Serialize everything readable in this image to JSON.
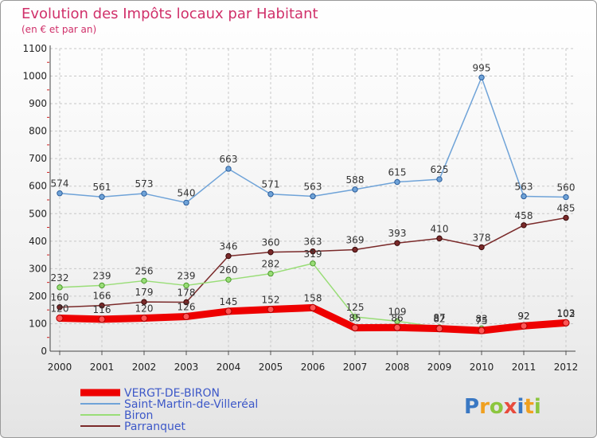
{
  "chart_data": {
    "type": "line",
    "title": "Evolution des Impôts locaux par Habitant",
    "subtitle": "(en € et par an)",
    "categories": [
      "2000",
      "2001",
      "2002",
      "2003",
      "2004",
      "2005",
      "2006",
      "2007",
      "2008",
      "2009",
      "2010",
      "2011",
      "2012"
    ],
    "ylim": [
      0,
      1100
    ],
    "yticks": [
      0,
      100,
      200,
      300,
      400,
      500,
      600,
      700,
      800,
      900,
      1000,
      1100
    ],
    "grid": true,
    "series": [
      {
        "name": "VERGT-DE-BIRON",
        "color": "#ee0000",
        "style": "thick",
        "values": [
          120,
          116,
          120,
          126,
          145,
          152,
          158,
          85,
          86,
          82,
          75,
          92,
          103
        ],
        "labels": [
          "120",
          "116",
          "120",
          "126",
          "145",
          "152",
          "158",
          "85",
          "86",
          "82",
          "75",
          "92",
          "103"
        ]
      },
      {
        "name": "Saint-Martin-de-Villeréal",
        "color": "#6fa3d8",
        "style": "thin",
        "values": [
          574,
          561,
          573,
          540,
          663,
          571,
          563,
          588,
          615,
          625,
          995,
          563,
          560
        ],
        "labels": [
          "574",
          "561",
          "573",
          "540",
          "663",
          "571",
          "563",
          "588",
          "615",
          "625",
          "995",
          "563",
          "560"
        ]
      },
      {
        "name": "Biron",
        "color": "#99dd77",
        "style": "thin",
        "values": [
          232,
          239,
          256,
          239,
          260,
          282,
          319,
          125,
          109,
          87,
          83,
          92,
          102
        ],
        "labels": [
          "232",
          "239",
          "256",
          "239",
          "260",
          "282",
          "319",
          "125",
          "109",
          "87",
          "83",
          "92",
          "102"
        ]
      },
      {
        "name": "Parranquet",
        "color": "#7a2a2a",
        "style": "thin",
        "values": [
          160,
          166,
          179,
          178,
          346,
          360,
          363,
          369,
          393,
          410,
          378,
          458,
          485
        ],
        "labels": [
          "160",
          "166",
          "179",
          "178",
          "346",
          "360",
          "363",
          "369",
          "393",
          "410",
          "378",
          "458",
          "485"
        ]
      }
    ]
  },
  "logo": {
    "letters": [
      "P",
      "r",
      "o",
      "x",
      "i",
      "t",
      "i"
    ],
    "colors": [
      "#3a78c3",
      "#f0a020",
      "#8cc63f",
      "#e84b3c",
      "#3a78c3",
      "#f0a020",
      "#8cc63f"
    ]
  }
}
